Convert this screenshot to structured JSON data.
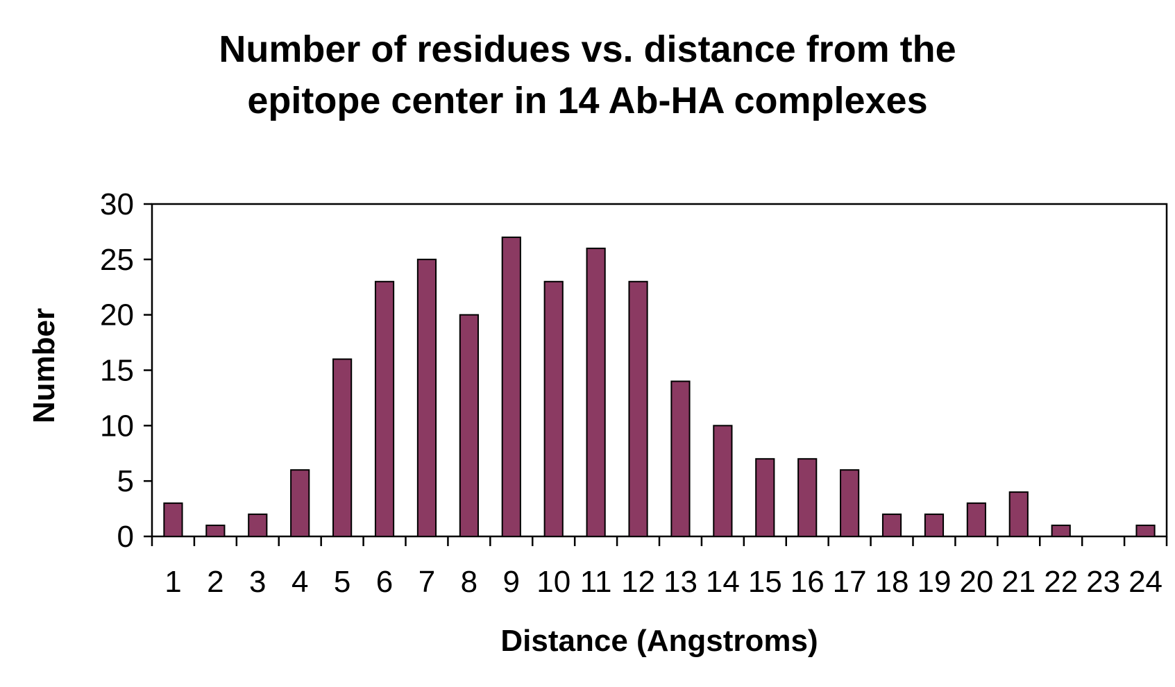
{
  "chart_data": {
    "type": "bar",
    "title_lines": [
      "Number of residues vs. distance from the",
      "epitope center in 14 Ab-HA complexes"
    ],
    "xlabel": "Distance (Angstroms)",
    "ylabel": "Number",
    "categories": [
      "1",
      "2",
      "3",
      "4",
      "5",
      "6",
      "7",
      "8",
      "9",
      "10",
      "11",
      "12",
      "13",
      "14",
      "15",
      "16",
      "17",
      "18",
      "19",
      "20",
      "21",
      "22",
      "23",
      "24"
    ],
    "values": [
      3,
      1,
      2,
      6,
      16,
      23,
      25,
      20,
      27,
      23,
      26,
      23,
      14,
      10,
      7,
      7,
      6,
      2,
      2,
      3,
      4,
      1,
      0,
      1
    ],
    "ylim": [
      0,
      30
    ],
    "yticks": [
      0,
      5,
      10,
      15,
      20,
      25,
      30
    ],
    "grid": false,
    "legend": "none",
    "bar_color": "#8B3A62",
    "bar_edge_color": "#000000"
  }
}
